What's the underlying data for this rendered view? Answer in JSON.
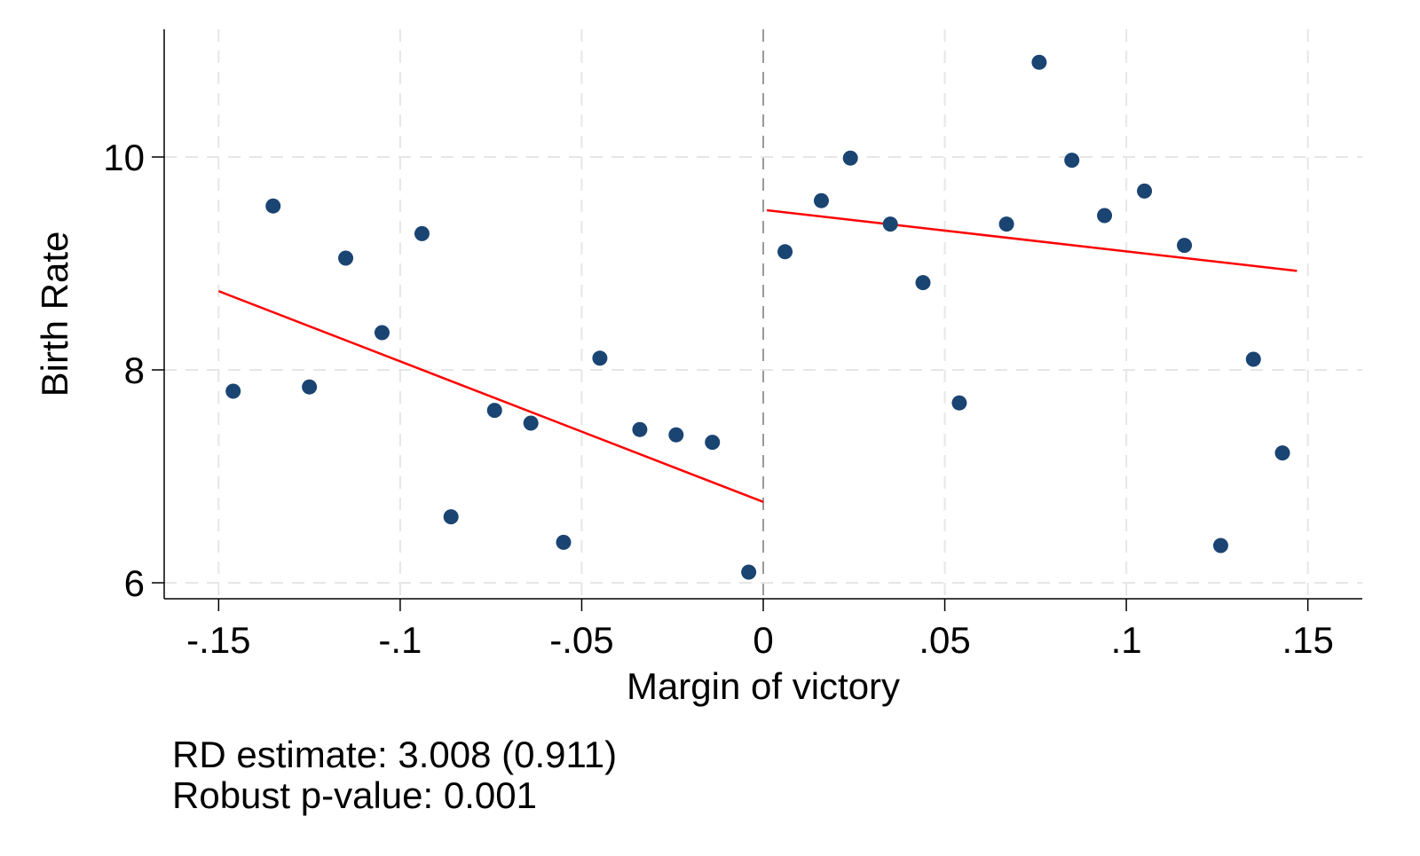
{
  "chart_data": {
    "type": "scatter",
    "xlabel": "Margin of victory",
    "ylabel": "Birth Rate",
    "xlim": [
      -0.165,
      0.165
    ],
    "ylim": [
      5.85,
      11.2
    ],
    "x_ticks": [
      -0.15,
      -0.1,
      -0.05,
      0,
      0.05,
      0.1,
      0.15
    ],
    "x_tick_labels": [
      "-.15",
      "-.1",
      "-.05",
      "0",
      ".05",
      ".1",
      ".15"
    ],
    "y_ticks": [
      6,
      8,
      10
    ],
    "y_tick_labels": [
      "6",
      "8",
      "10"
    ],
    "grid": true,
    "threshold": 0,
    "colors": {
      "points": "#1a4472",
      "fit": "#ff0000",
      "grid": "#e6e6e6",
      "axis": "#000000"
    },
    "series": [
      {
        "kind": "points",
        "x": [
          -0.146,
          -0.135,
          -0.125,
          -0.115,
          -0.105,
          -0.094,
          -0.086,
          -0.074,
          -0.064,
          -0.055,
          -0.045,
          -0.034,
          -0.024,
          -0.014,
          -0.004,
          0.006,
          0.016,
          0.024,
          0.035,
          0.044,
          0.054,
          0.067,
          0.076,
          0.085,
          0.094,
          0.105,
          0.116,
          0.126,
          0.135,
          0.143
        ],
        "y": [
          7.8,
          9.54,
          7.84,
          9.05,
          8.35,
          9.28,
          6.62,
          7.62,
          7.5,
          6.38,
          8.11,
          7.44,
          7.39,
          7.32,
          6.1,
          9.11,
          9.59,
          9.99,
          9.37,
          8.82,
          7.69,
          9.37,
          10.89,
          9.97,
          9.45,
          9.68,
          9.17,
          6.35,
          8.1,
          7.22
        ]
      },
      {
        "kind": "fit",
        "x": [
          -0.15,
          0
        ],
        "y": [
          8.74,
          6.76
        ]
      },
      {
        "kind": "fit",
        "x": [
          0.001,
          0.147
        ],
        "y": [
          9.5,
          8.93
        ]
      }
    ]
  },
  "notes": {
    "rd_estimate": "RD estimate: 3.008 (0.911)",
    "p_value": "Robust p-value: 0.001"
  }
}
